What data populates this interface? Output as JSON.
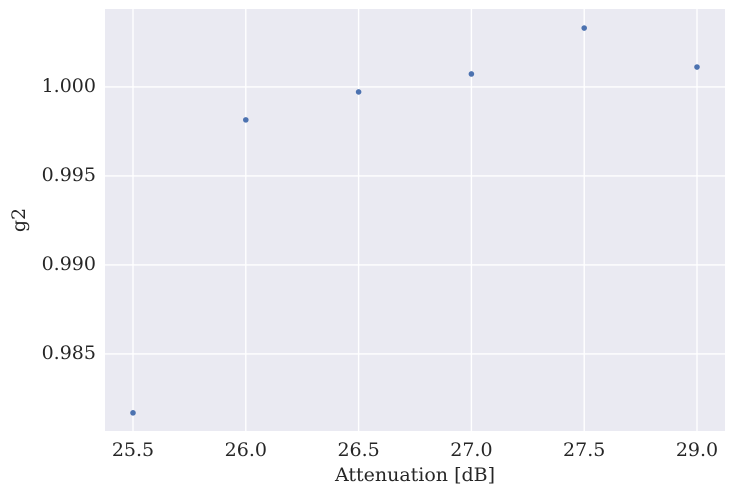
{
  "chart_data": {
    "type": "scatter",
    "x_label": "Attenuation [dB]",
    "y_label": "g2",
    "categories": [
      "25.5",
      "26.0",
      "26.5",
      "27.0",
      "27.5",
      "29.0"
    ],
    "values": [
      0.98169,
      0.99815,
      0.99972,
      1.00073,
      1.00331,
      1.00112
    ],
    "color": "#4c72b0",
    "ylim": [
      0.98067,
      1.00438
    ],
    "yticks": [
      0.985,
      {
        "value": 0.99,
        "label": "0.990"
      },
      0.995,
      {
        "value": 1,
        "label": "1.000"
      }
    ],
    "grid": true
  }
}
